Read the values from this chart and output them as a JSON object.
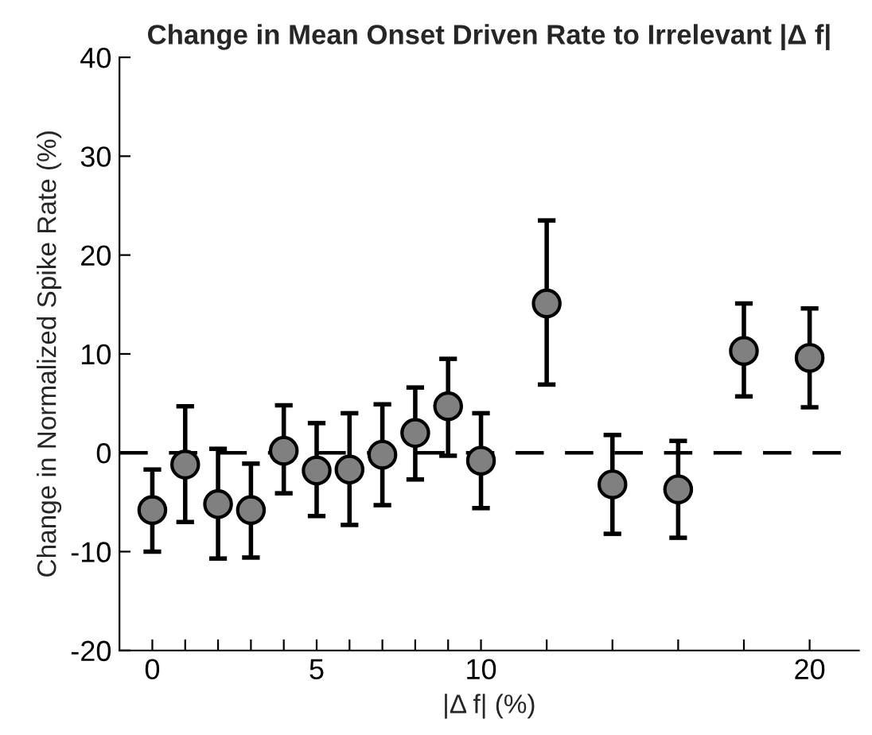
{
  "chart_data": {
    "type": "scatter",
    "title": "Change in Mean Onset Driven Rate to Irrelevant |Δ f|",
    "xlabel": "|Δ f| (%)",
    "ylabel": "Change in Normalized Spike Rate (%)",
    "x": [
      0,
      1,
      2,
      3,
      4,
      5,
      6,
      7,
      8,
      9,
      10,
      12,
      14,
      16,
      18,
      20
    ],
    "values": [
      -5.8,
      -1.2,
      -5.2,
      -5.8,
      0.2,
      -1.8,
      -1.7,
      -0.2,
      2.0,
      4.7,
      -0.8,
      15.1,
      -3.2,
      -3.7,
      10.3,
      9.6
    ],
    "errors": [
      [
        -10.0,
        -1.7
      ],
      [
        -7.0,
        4.7
      ],
      [
        -10.7,
        0.4
      ],
      [
        -10.6,
        -1.1
      ],
      [
        -4.1,
        4.8
      ],
      [
        -6.4,
        3.0
      ],
      [
        -7.3,
        4.0
      ],
      [
        -5.3,
        4.9
      ],
      [
        -2.7,
        6.6
      ],
      [
        -0.3,
        9.5
      ],
      [
        -5.6,
        4.0
      ],
      [
        6.9,
        23.5
      ],
      [
        -8.2,
        1.8
      ],
      [
        -8.6,
        1.2
      ],
      [
        5.7,
        15.1
      ],
      [
        4.6,
        14.6
      ]
    ],
    "color": "#808080",
    "marker": "circle",
    "xlim": [
      -1,
      21.5
    ],
    "ylim": [
      -20,
      40
    ],
    "xticks": [
      0,
      {
        "value": 1,
        "label": null
      },
      {
        "value": 2,
        "label": null
      },
      {
        "value": 3,
        "label": null
      },
      {
        "value": 4,
        "label": null
      },
      5,
      {
        "value": 6,
        "label": null
      },
      {
        "value": 7,
        "label": null
      },
      {
        "value": 8,
        "label": null
      },
      {
        "value": 9,
        "label": null
      },
      10,
      {
        "value": 12,
        "label": null
      },
      {
        "value": 14,
        "label": null
      },
      {
        "value": 16,
        "label": null
      },
      {
        "value": 18,
        "label": null
      },
      20
    ],
    "yticks": [
      -20,
      -10,
      0,
      10,
      20,
      30,
      40
    ],
    "ref_lines": [
      {
        "axis": "y",
        "value": 0,
        "label": null,
        "color": "#000000",
        "line_style": "dashed"
      }
    ],
    "grid": false,
    "legend": false
  }
}
